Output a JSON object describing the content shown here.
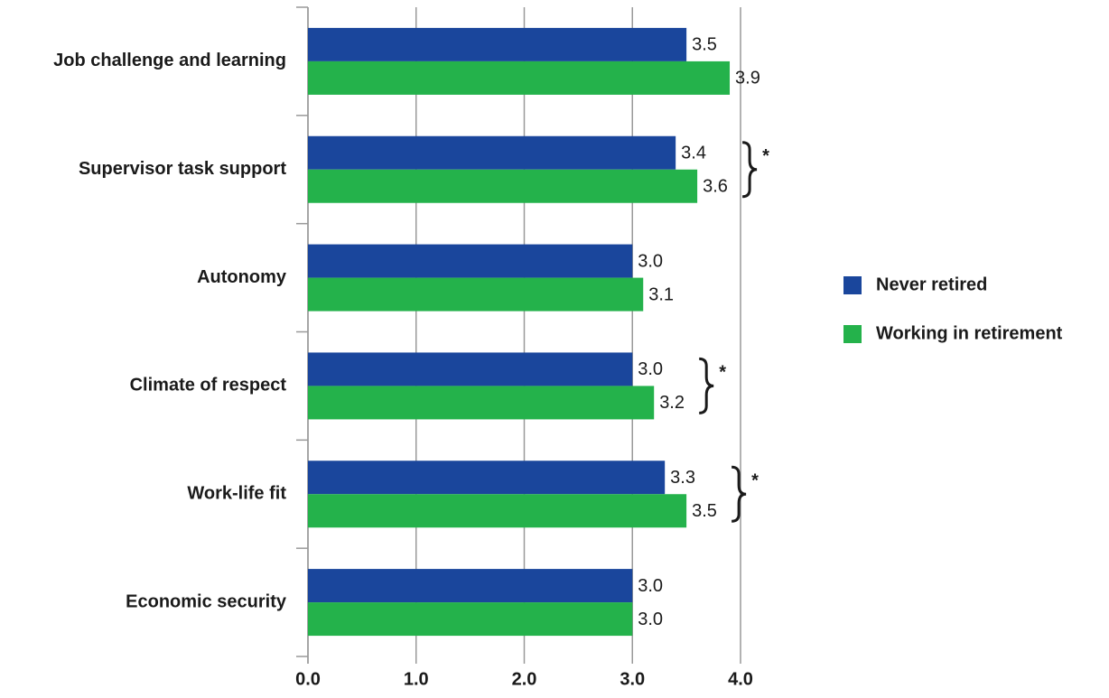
{
  "chart_data": {
    "type": "hbar",
    "categories": [
      "Job challenge and learning",
      "Supervisor task support",
      "Autonomy",
      "Climate of respect",
      "Work-life fit",
      "Economic security"
    ],
    "series": [
      {
        "name": "Never retired",
        "color": "#1a469c",
        "values": [
          3.5,
          3.4,
          3.0,
          3.0,
          3.3,
          3.0
        ],
        "value_labels": [
          "3.5",
          "3.4",
          "3.0",
          "3.0",
          "3.3",
          "3.0"
        ]
      },
      {
        "name": "Working in retirement",
        "color": "#24b24b",
        "values": [
          3.9,
          3.6,
          3.1,
          3.2,
          3.5,
          3.0
        ],
        "value_labels": [
          "3.9",
          "3.6",
          "3.1",
          "3.2",
          "3.5",
          "3.0"
        ]
      }
    ],
    "xlim": [
      0,
      4
    ],
    "xticks": [
      {
        "value": 0,
        "label": "0.0"
      },
      {
        "value": 1,
        "label": "1.0"
      },
      {
        "value": 2,
        "label": "2.0"
      },
      {
        "value": 3,
        "label": "3.0"
      },
      {
        "value": 4,
        "label": "4.0"
      }
    ],
    "grid": true,
    "legend": "right",
    "annotations": [
      {
        "category": "Supervisor task support",
        "text": "*"
      },
      {
        "category": "Climate of respect",
        "text": "*"
      },
      {
        "category": "Work-life fit",
        "text": "*"
      }
    ]
  }
}
